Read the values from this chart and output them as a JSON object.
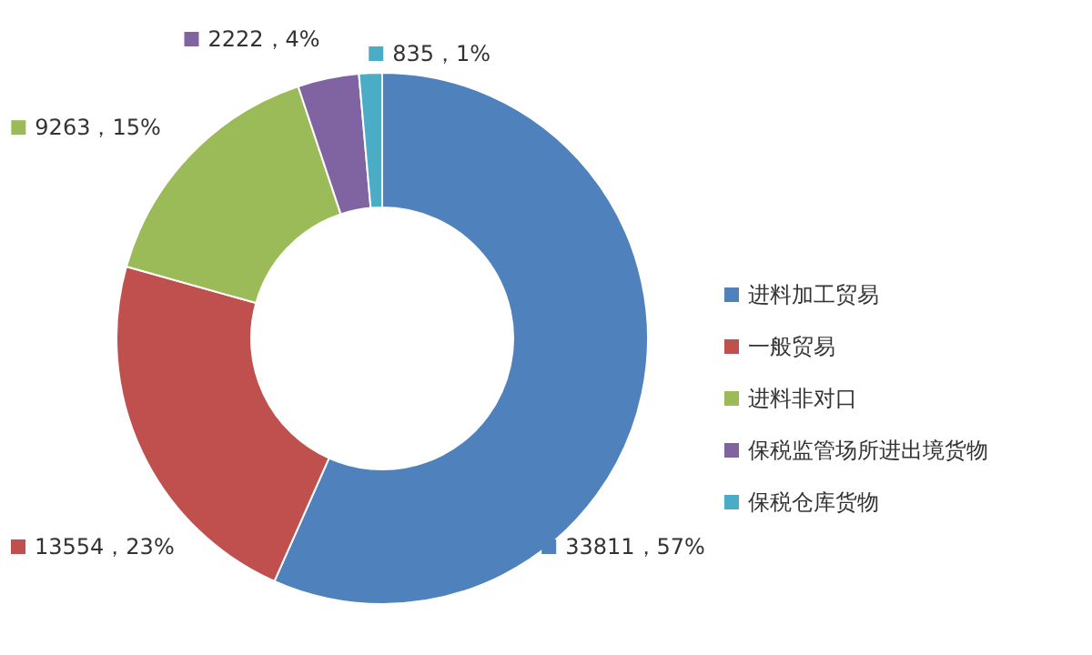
{
  "chart_data": {
    "type": "donut",
    "categories": [
      "进料加工贸易",
      "一般贸易",
      "进料非对口",
      "保税监管场所进出境货物",
      "保税仓库货物"
    ],
    "values": [
      33811,
      13554,
      9263,
      2222,
      835
    ],
    "colors": [
      "#4f81bd",
      "#c0504d",
      "#9bbb59",
      "#8064a2",
      "#4bacc6"
    ],
    "value_labels": [
      "33811，57%",
      "13554，23%",
      "9263，15%",
      "2222，4%",
      "835，1%"
    ],
    "legend": "right"
  }
}
